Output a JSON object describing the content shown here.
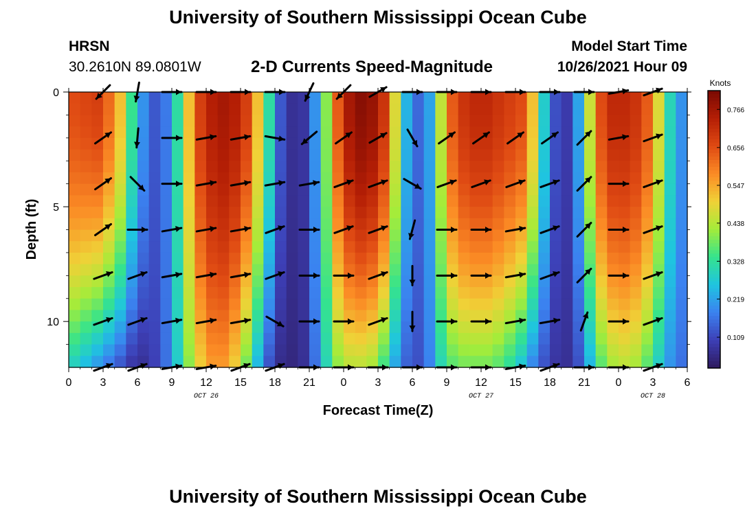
{
  "header": {
    "title": "University of Southern Mississippi Ocean Cube",
    "station": "HRSN",
    "coords": "30.2610N  89.0801W",
    "plot_title": "2-D Currents Speed-Magnitude",
    "model_start_label": "Model Start Time",
    "model_start_value": "10/26/2021 Hour 09"
  },
  "footer": {
    "title": "University of Southern Mississippi Ocean Cube"
  },
  "chart_data": {
    "type": "heatmap",
    "title": "2-D Currents Speed-Magnitude",
    "xlabel": "Forecast Time(Z)",
    "ylabel": "Depth (ft)",
    "x_ticks": [
      "0",
      "3",
      "6",
      "9",
      "12",
      "15",
      "18",
      "21",
      "0",
      "3",
      "6",
      "9",
      "12",
      "15",
      "18",
      "21",
      "0",
      "3",
      "6"
    ],
    "x_range_hours": [
      0,
      54
    ],
    "y_ticks": [
      "0",
      "5",
      "10"
    ],
    "y_range_ft": [
      0,
      12
    ],
    "day_labels": [
      {
        "label": "OCT 26",
        "hour": 12
      },
      {
        "label": "OCT 27",
        "hour": 36
      },
      {
        "label": "OCT 28",
        "hour": 51
      }
    ],
    "colorbar": {
      "label": "Knots",
      "ticks": [
        "0.109",
        "0.219",
        "0.328",
        "0.438",
        "0.547",
        "0.656",
        "0.766"
      ],
      "range": [
        0.02,
        0.82
      ],
      "colors": [
        "#2e1a5e",
        "#3d3fb6",
        "#3b82f0",
        "#1fc4e0",
        "#35e38d",
        "#a4ec3a",
        "#f0d137",
        "#fb8b25",
        "#df4a13",
        "#b41e05",
        "#7a0a03"
      ]
    },
    "speed_columns": {
      "hours": [
        0,
        1,
        2,
        3,
        4,
        5,
        6,
        7,
        8,
        9,
        10,
        11,
        12,
        13,
        14,
        15,
        16,
        17,
        18,
        19,
        20,
        21,
        22,
        23,
        24,
        25,
        26,
        27,
        28,
        29,
        30,
        31,
        32,
        33,
        34,
        35,
        36,
        37,
        38,
        39,
        40,
        41,
        42,
        43,
        44,
        45,
        46,
        47,
        48,
        49,
        50,
        51,
        52,
        53,
        54
      ],
      "surface_knots": [
        0.66,
        0.67,
        0.68,
        0.62,
        0.52,
        0.34,
        0.2,
        0.13,
        0.17,
        0.32,
        0.52,
        0.68,
        0.74,
        0.76,
        0.74,
        0.68,
        0.52,
        0.32,
        0.13,
        0.07,
        0.08,
        0.2,
        0.4,
        0.64,
        0.76,
        0.8,
        0.78,
        0.7,
        0.48,
        0.24,
        0.15,
        0.22,
        0.45,
        0.64,
        0.7,
        0.72,
        0.72,
        0.7,
        0.68,
        0.66,
        0.52,
        0.28,
        0.12,
        0.09,
        0.22,
        0.46,
        0.66,
        0.72,
        0.72,
        0.7,
        0.64,
        0.48,
        0.3,
        0.2,
        0.18
      ],
      "bottom_knots": [
        0.28,
        0.24,
        0.2,
        0.16,
        0.12,
        0.08,
        0.07,
        0.1,
        0.16,
        0.28,
        0.4,
        0.5,
        0.56,
        0.56,
        0.5,
        0.38,
        0.24,
        0.12,
        0.06,
        0.05,
        0.07,
        0.16,
        0.3,
        0.4,
        0.44,
        0.44,
        0.42,
        0.34,
        0.22,
        0.14,
        0.12,
        0.18,
        0.3,
        0.36,
        0.38,
        0.38,
        0.38,
        0.36,
        0.32,
        0.26,
        0.18,
        0.12,
        0.08,
        0.07,
        0.12,
        0.24,
        0.36,
        0.42,
        0.44,
        0.42,
        0.36,
        0.28,
        0.2,
        0.16,
        0.15
      ],
      "profile_exponent": 1.8
    },
    "vectors": {
      "hours": [
        3,
        6,
        9,
        12,
        15,
        18,
        21,
        24,
        27,
        30,
        33,
        36,
        39,
        42,
        45,
        48,
        51
      ],
      "depths_ft": [
        0,
        2,
        4,
        6,
        8,
        10,
        12
      ],
      "angles_deg": [
        [
          225,
          260,
          0,
          0,
          0,
          0,
          245,
          225,
          30,
          0,
          0,
          0,
          0,
          0,
          0,
          10,
          20
        ],
        [
          35,
          265,
          0,
          10,
          10,
          350,
          220,
          35,
          30,
          300,
          35,
          35,
          35,
          35,
          45,
          10,
          20
        ],
        [
          35,
          315,
          0,
          10,
          10,
          10,
          10,
          20,
          20,
          330,
          20,
          20,
          20,
          20,
          45,
          0,
          20
        ],
        [
          35,
          0,
          10,
          10,
          10,
          20,
          0,
          20,
          20,
          255,
          0,
          0,
          10,
          20,
          45,
          0,
          20
        ],
        [
          20,
          20,
          10,
          10,
          10,
          20,
          0,
          0,
          20,
          270,
          0,
          0,
          10,
          20,
          45,
          0,
          20
        ],
        [
          20,
          20,
          10,
          10,
          10,
          330,
          0,
          0,
          20,
          270,
          0,
          0,
          10,
          10,
          70,
          0,
          20
        ],
        [
          20,
          20,
          10,
          10,
          20,
          20,
          0,
          0,
          0,
          0,
          0,
          0,
          10,
          20,
          0,
          0,
          20
        ]
      ]
    }
  }
}
